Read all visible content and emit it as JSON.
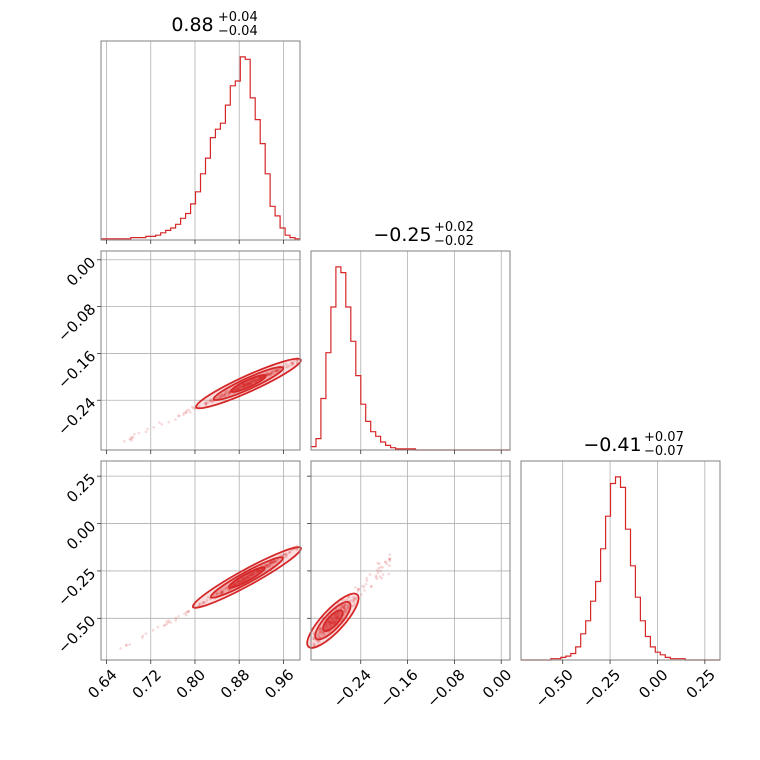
{
  "chart_data": {
    "type": "corner",
    "color": "#d62728",
    "params": [
      {
        "title_median": "0.88",
        "title_upper": "+0.04",
        "title_lower": "−0.04",
        "range": [
          0.63,
          0.99
        ],
        "ticks": [
          0.64,
          0.72,
          0.8,
          0.88,
          0.96
        ],
        "tick_labels": [
          "0.64",
          "0.72",
          "0.80",
          "0.88",
          "0.96"
        ],
        "hist_bins": [
          0.63,
          0.99
        ],
        "hist_counts": [
          1,
          1,
          1,
          1,
          1,
          1,
          2,
          2,
          2,
          3,
          3,
          4,
          6,
          8,
          10,
          13,
          18,
          22,
          30,
          40,
          55,
          68,
          85,
          92,
          97,
          112,
          128,
          132,
          152,
          150,
          118,
          100,
          80,
          55,
          28,
          20,
          10,
          4,
          2,
          1
        ]
      },
      {
        "title_median": "−0.25",
        "title_upper": "+0.02",
        "title_lower": "−0.02",
        "range": [
          -0.325,
          0.015
        ],
        "ticks": [
          -0.24,
          -0.16,
          -0.08,
          0.0
        ],
        "tick_labels": [
          "−0.24",
          "−0.16",
          "−0.08",
          "0.00"
        ],
        "hist_bins": [
          -0.325,
          0.015
        ],
        "hist_counts": [
          3,
          10,
          45,
          85,
          125,
          160,
          155,
          125,
          95,
          65,
          40,
          25,
          16,
          12,
          7,
          4,
          2,
          1,
          1,
          1,
          1,
          0,
          0,
          0,
          0,
          0,
          0,
          0,
          0,
          0,
          0,
          0,
          0,
          0,
          0,
          0,
          0,
          0,
          0,
          0
        ]
      },
      {
        "title_median": "−0.41",
        "title_upper": "+0.07",
        "title_lower": "−0.07",
        "range": [
          -0.72,
          0.33
        ],
        "ticks": [
          -0.5,
          -0.25,
          0.0,
          0.25
        ],
        "tick_labels": [
          "−0.50",
          "−0.25",
          "0.00",
          "0.25"
        ],
        "hist_bins": [
          -0.72,
          0.33
        ],
        "hist_counts": [
          0,
          0,
          0,
          0,
          0,
          0,
          1,
          1,
          2,
          3,
          5,
          10,
          20,
          30,
          45,
          60,
          85,
          110,
          135,
          140,
          132,
          100,
          72,
          48,
          30,
          18,
          10,
          6,
          4,
          2,
          1,
          1,
          1,
          0,
          0,
          0,
          0,
          0,
          0,
          0
        ]
      }
    ],
    "pair_ticks_y": {
      "p1": {
        "values": [
          0.0,
          -0.08,
          -0.16,
          -0.24
        ],
        "labels": [
          "0.00",
          "−0.08",
          "−0.16",
          "−0.24"
        ]
      },
      "p2": {
        "values": [
          0.25,
          0.0,
          -0.25,
          -0.5
        ],
        "labels": [
          "0.25",
          "0.00",
          "−0.25",
          "−0.50"
        ]
      }
    },
    "correlations": {
      "p0_p1": {
        "from": [
          0.67,
          -0.31
        ],
        "to": [
          0.985,
          -0.175
        ],
        "curve": 0.02
      },
      "p0_p2": {
        "from": [
          0.66,
          -0.67
        ],
        "to": [
          0.985,
          -0.15
        ],
        "curve": 0.04
      },
      "p1_p2": {
        "from": [
          -0.32,
          -0.62
        ],
        "to": [
          -0.19,
          -0.19
        ],
        "curve": 0.0
      }
    },
    "grid": true
  }
}
